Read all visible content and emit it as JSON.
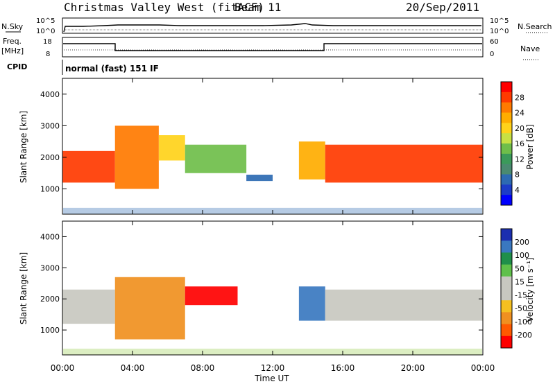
{
  "header": {
    "station": "Christmas Valley West (fitACF)",
    "beam": "Beam 11",
    "date": "20/Sep/2011"
  },
  "top_panels": {
    "nsky": {
      "label": "N.Sky",
      "ticks": [
        "10^5",
        "10^0"
      ]
    },
    "nsearch": {
      "label": "N.Search",
      "ticks": [
        "10^5",
        "10^0"
      ]
    },
    "freq": {
      "label": "Freq.",
      "unit": "[MHz]",
      "ticks": [
        "18",
        "8"
      ]
    },
    "nave": {
      "label": "Nave",
      "ticks": [
        "60",
        "0"
      ]
    },
    "cpid": {
      "label": "CPID",
      "value": "normal (fast) 151 IF"
    }
  },
  "colorbars": {
    "power": {
      "label": "Power [dB]",
      "ticks": [
        "28",
        "24",
        "20",
        "16",
        "12",
        "8",
        "4"
      ],
      "colors": [
        "#ff0000",
        "#ff3a00",
        "#ff7a00",
        "#ffad00",
        "#ffd21a",
        "#c8e043",
        "#6fbe4a",
        "#3b9a5a",
        "#4a8a70",
        "#2d6ab2",
        "#1d3cc8",
        "#0000ff"
      ]
    },
    "velocity": {
      "label": "Velocity [m s⁻¹]",
      "ticks": [
        "200",
        "100",
        "50",
        "15",
        "-15",
        "-50",
        "-100",
        "-200"
      ],
      "colors": [
        "#1b2fb0",
        "#3a78c0",
        "#1f8f4a",
        "#5fc04a",
        "#c8c8c0",
        "#c8c8c0",
        "#f5c020",
        "#f09020",
        "#ff5a00",
        "#ff0000"
      ]
    }
  },
  "chart_data": [
    {
      "type": "heatmap",
      "title": "Power",
      "ylabel": "Slant Range [km]",
      "xlabel": "Time UT",
      "xlim": [
        0,
        24
      ],
      "ylim": [
        200,
        4500
      ],
      "xticks": [
        "00:00",
        "04:00",
        "08:00",
        "12:00",
        "16:00",
        "20:00",
        "00:00"
      ],
      "yticks": [
        "1000",
        "2000",
        "3000",
        "4000"
      ],
      "bands": [
        {
          "t": [
            0,
            3
          ],
          "r": [
            1200,
            2200
          ],
          "level": 26
        },
        {
          "t": [
            3,
            5.5
          ],
          "r": [
            1000,
            3000
          ],
          "level": 24
        },
        {
          "t": [
            5.5,
            7
          ],
          "r": [
            1900,
            2700
          ],
          "level": 20
        },
        {
          "t": [
            7,
            10.5
          ],
          "r": [
            1500,
            2400
          ],
          "level": 14
        },
        {
          "t": [
            10.5,
            12
          ],
          "r": [
            1250,
            1450
          ],
          "level": 6
        },
        {
          "t": [
            13.5,
            15
          ],
          "r": [
            1300,
            2500
          ],
          "level": 22
        },
        {
          "t": [
            15,
            24
          ],
          "r": [
            1200,
            2400
          ],
          "level": 27
        }
      ]
    },
    {
      "type": "heatmap",
      "title": "Velocity",
      "ylabel": "Slant Range [km]",
      "xlabel": "Time UT",
      "xlim": [
        0,
        24
      ],
      "ylim": [
        200,
        4500
      ],
      "xticks": [
        "00:00",
        "04:00",
        "08:00",
        "12:00",
        "16:00",
        "20:00",
        "00:00"
      ],
      "yticks": [
        "1000",
        "2000",
        "3000",
        "4000"
      ],
      "bands": [
        {
          "t": [
            0,
            3
          ],
          "r": [
            1200,
            2300
          ],
          "level": 0
        },
        {
          "t": [
            3,
            7
          ],
          "r": [
            700,
            2700
          ],
          "level": -60
        },
        {
          "t": [
            7,
            10
          ],
          "r": [
            1800,
            2400
          ],
          "level": -200
        },
        {
          "t": [
            13.5,
            15
          ],
          "r": [
            1300,
            2400
          ],
          "level": 80
        },
        {
          "t": [
            15,
            24
          ],
          "r": [
            1300,
            2300
          ],
          "level": 0
        }
      ]
    }
  ],
  "footer": {
    "xlabel": "Time UT"
  }
}
